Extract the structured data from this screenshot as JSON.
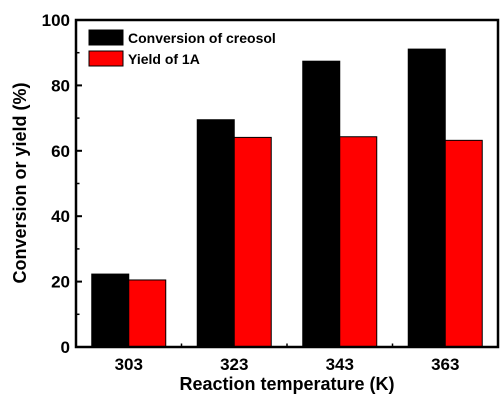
{
  "chart_data": {
    "type": "bar",
    "categories": [
      "303",
      "323",
      "343",
      "363"
    ],
    "series": [
      {
        "name": "Conversion of creosol",
        "values": [
          22.3,
          69.5,
          87.4,
          91.1
        ],
        "color": "#000000"
      },
      {
        "name": "Yield of 1A",
        "values": [
          20.5,
          64.1,
          64.3,
          63.2
        ],
        "color": "#ff0000"
      }
    ],
    "xlabel": "Reaction temperature (K)",
    "ylabel": "Conversion or yield (%)",
    "ylim": [
      0,
      100
    ],
    "yticks": [
      "0",
      "20",
      "40",
      "60",
      "80",
      "100"
    ],
    "legend_position": "top-left",
    "grid": false
  }
}
